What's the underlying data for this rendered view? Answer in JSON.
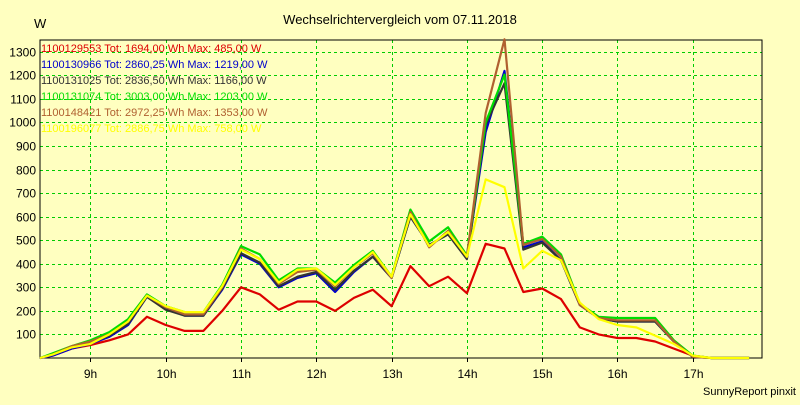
{
  "chart_data": {
    "type": "line",
    "title": "Wechselrichtervergleich vom 07.11.2018",
    "ylabel": "W",
    "xlabel": "",
    "footer": "SunnyReport pinxit",
    "xlim": [
      8.33,
      17.92
    ],
    "ylim": [
      0,
      1350
    ],
    "x_ticks": [
      9,
      10,
      11,
      12,
      13,
      14,
      15,
      16,
      17
    ],
    "x_tick_labels": [
      "9h",
      "10h",
      "11h",
      "12h",
      "13h",
      "14h",
      "15h",
      "16h",
      "17h"
    ],
    "y_ticks": [
      100,
      200,
      300,
      400,
      500,
      600,
      700,
      800,
      900,
      1000,
      1100,
      1200,
      1300
    ],
    "y_tick_labels": [
      "100",
      "200",
      "300",
      "400",
      "500",
      "600",
      "700",
      "800",
      "900",
      "1000",
      "1100",
      "1200",
      "1300"
    ],
    "grid": true,
    "legend_position": "top-left",
    "colors": {
      "background": "#ffffc0",
      "grid": "#00cc00",
      "axis": "#000000"
    },
    "x": [
      8.33,
      8.5,
      8.75,
      9.0,
      9.25,
      9.5,
      9.75,
      10.0,
      10.25,
      10.5,
      10.75,
      11.0,
      11.25,
      11.5,
      11.75,
      12.0,
      12.25,
      12.5,
      12.75,
      13.0,
      13.25,
      13.5,
      13.75,
      14.0,
      14.25,
      14.5,
      14.75,
      15.0,
      15.25,
      15.5,
      15.75,
      16.0,
      16.25,
      16.5,
      16.75,
      17.0,
      17.25,
      17.5,
      17.75
    ],
    "series": [
      {
        "name": "1100129553 Tot: 1694,00 Wh Max: 485,00 W",
        "color": "#dd0000",
        "values": [
          0,
          10,
          40,
          55,
          75,
          100,
          175,
          140,
          115,
          115,
          200,
          300,
          270,
          205,
          240,
          240,
          200,
          255,
          290,
          220,
          390,
          305,
          345,
          275,
          485,
          465,
          280,
          295,
          250,
          130,
          100,
          85,
          85,
          70,
          40,
          10,
          0,
          0,
          0
        ]
      },
      {
        "name": "1100130966 Tot: 2860,25 Wh Max: 1219,00 W",
        "color": "#0000cc",
        "values": [
          0,
          10,
          40,
          60,
          90,
          140,
          260,
          210,
          180,
          180,
          290,
          440,
          400,
          300,
          340,
          360,
          280,
          365,
          430,
          340,
          600,
          480,
          525,
          425,
          960,
          1219,
          470,
          495,
          415,
          225,
          170,
          155,
          155,
          155,
          70,
          5,
          0,
          0,
          0
        ]
      },
      {
        "name": "1100131025 Tot: 2836,50 Wh Max: 1166,00 W",
        "color": "#333333",
        "values": [
          0,
          15,
          45,
          65,
          95,
          145,
          260,
          205,
          180,
          180,
          295,
          445,
          405,
          305,
          345,
          365,
          290,
          370,
          430,
          340,
          600,
          480,
          525,
          420,
          990,
          1166,
          460,
          490,
          415,
          225,
          170,
          155,
          155,
          155,
          70,
          5,
          0,
          0,
          0
        ]
      },
      {
        "name": "1100131074 Tot: 3003,00 Wh Max: 1203,00 W",
        "color": "#00dd00",
        "values": [
          0,
          20,
          50,
          75,
          110,
          165,
          270,
          220,
          195,
          195,
          310,
          475,
          440,
          330,
          380,
          380,
          320,
          395,
          455,
          345,
          630,
          495,
          555,
          435,
          1000,
          1203,
          485,
          515,
          440,
          230,
          175,
          170,
          170,
          170,
          75,
          10,
          0,
          0,
          0
        ]
      },
      {
        "name": "1100148421 Tot: 2972,25 Wh Max: 1353,00 W",
        "color": "#b06030",
        "values": [
          0,
          15,
          50,
          70,
          100,
          155,
          265,
          215,
          185,
          185,
          300,
          465,
          420,
          315,
          365,
          375,
          305,
          385,
          445,
          340,
          620,
          470,
          540,
          430,
          1040,
          1353,
          480,
          505,
          430,
          225,
          170,
          160,
          160,
          160,
          70,
          5,
          0,
          0,
          0
        ]
      },
      {
        "name": "1100196077 Tot: 2886,75 Wh Max: 758,00 W",
        "color": "#ffff00",
        "values": [
          0,
          15,
          45,
          60,
          100,
          155,
          265,
          220,
          195,
          195,
          305,
          460,
          420,
          320,
          375,
          380,
          310,
          385,
          450,
          345,
          610,
          475,
          535,
          430,
          758,
          725,
          380,
          455,
          415,
          235,
          165,
          140,
          130,
          95,
          60,
          10,
          0,
          0,
          0
        ]
      }
    ]
  }
}
